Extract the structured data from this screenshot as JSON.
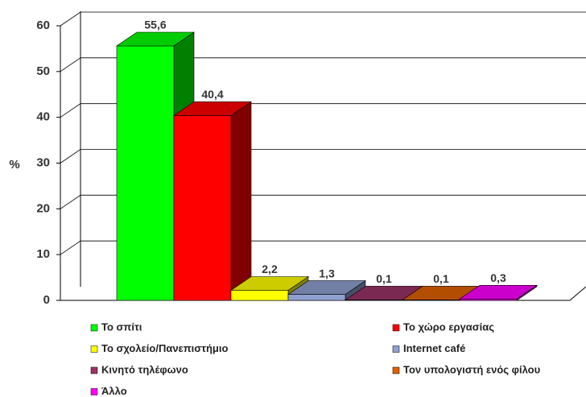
{
  "chart_data": {
    "type": "bar3d",
    "y_label": "%",
    "categories": [
      null
    ],
    "ylim": [
      0,
      60
    ],
    "yticks": [
      0,
      10,
      20,
      30,
      40,
      50,
      60
    ],
    "grid": true,
    "legend": "bottom",
    "series": [
      {
        "name": "Το σπίτι",
        "color": "#00ff00",
        "values": [
          55.6
        ],
        "value_labels": [
          "55,6"
        ]
      },
      {
        "name": "Το χώρο εργασίας",
        "color": "#ff0000",
        "values": [
          40.4
        ],
        "value_labels": [
          "40,4"
        ]
      },
      {
        "name": "Το σχολείο/Πανεπιστήμιο",
        "color": "#ffff00",
        "values": [
          2.2
        ],
        "value_labels": [
          "2,2"
        ]
      },
      {
        "name": "Internet café",
        "color": "#8fa0cf",
        "values": [
          1.3
        ],
        "value_labels": [
          "1,3"
        ]
      },
      {
        "name": "Κινητό τηλέφωνο",
        "color": "#993366",
        "values": [
          0.1
        ],
        "value_labels": [
          "0,1"
        ]
      },
      {
        "name": "Τον υπολογιστή ενός φίλου",
        "color": "#e06000",
        "values": [
          0.1
        ],
        "value_labels": [
          "0,1"
        ]
      },
      {
        "name": "Άλλο",
        "color": "#ff00ff",
        "values": [
          0.3
        ],
        "value_labels": [
          "0,3"
        ]
      }
    ]
  }
}
